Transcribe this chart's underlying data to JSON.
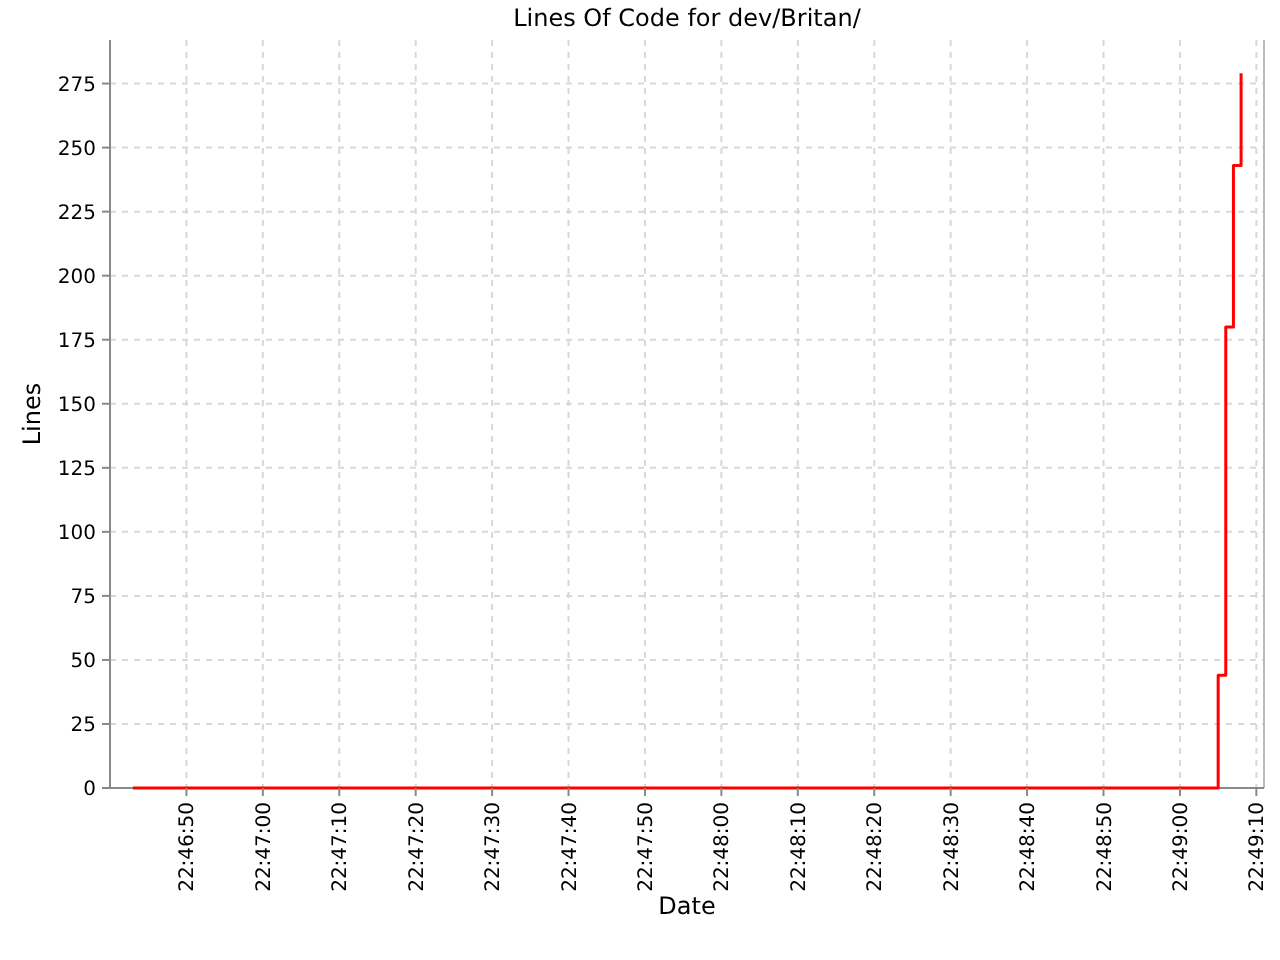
{
  "chart_data": {
    "type": "step",
    "title": "Lines Of Code for dev/Britan/",
    "xlabel": "Date",
    "ylabel": "Lines",
    "series": [
      {
        "color": "#ff0000",
        "x": [
          22.778611,
          22.818056,
          22.818333,
          22.818611,
          22.818889
        ],
        "values": [
          0,
          44,
          180,
          243,
          279
        ]
      }
    ],
    "xlim": [
      22.777778,
      22.819722
    ],
    "xticks": [
      {
        "value": 22.780556,
        "label": "22:46:50"
      },
      {
        "value": 22.783333,
        "label": "22:47:00"
      },
      {
        "value": 22.786111,
        "label": "22:47:10"
      },
      {
        "value": 22.788889,
        "label": "22:47:20"
      },
      {
        "value": 22.791667,
        "label": "22:47:30"
      },
      {
        "value": 22.794444,
        "label": "22:47:40"
      },
      {
        "value": 22.797222,
        "label": "22:47:50"
      },
      {
        "value": 22.8,
        "label": "22:48:00"
      },
      {
        "value": 22.802778,
        "label": "22:48:10"
      },
      {
        "value": 22.805556,
        "label": "22:48:20"
      },
      {
        "value": 22.808333,
        "label": "22:48:30"
      },
      {
        "value": 22.811111,
        "label": "22:48:40"
      },
      {
        "value": 22.813889,
        "label": "22:48:50"
      },
      {
        "value": 22.816667,
        "label": "22:49:00"
      },
      {
        "value": 22.819444,
        "label": "22:49:10"
      }
    ],
    "ylim": [
      0,
      292
    ],
    "yticks": [
      0,
      25,
      50,
      75,
      100,
      125,
      150,
      175,
      200,
      225,
      250,
      275
    ],
    "grid": true,
    "marker": "none",
    "line_style": "solid"
  }
}
